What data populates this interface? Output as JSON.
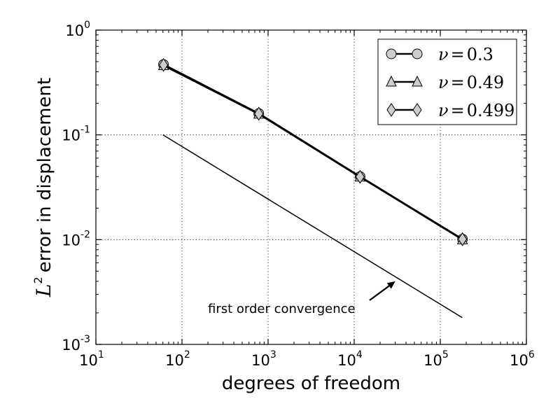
{
  "chart_data": {
    "type": "line",
    "x_scale": "log",
    "y_scale": "log",
    "xlim": [
      10,
      1000000
    ],
    "ylim": [
      0.001,
      1
    ],
    "x_ticks": [
      {
        "base": "10",
        "exp": "1",
        "value": 10
      },
      {
        "base": "10",
        "exp": "2",
        "value": 100
      },
      {
        "base": "10",
        "exp": "3",
        "value": 1000
      },
      {
        "base": "10",
        "exp": "4",
        "value": 10000
      },
      {
        "base": "10",
        "exp": "5",
        "value": 100000
      },
      {
        "base": "10",
        "exp": "6",
        "value": 1000000
      }
    ],
    "y_ticks": [
      {
        "base": "10",
        "exp": "-3",
        "value": 0.001
      },
      {
        "base": "10",
        "exp": "-2",
        "value": 0.01
      },
      {
        "base": "10",
        "exp": "-1",
        "value": 0.1
      },
      {
        "base": "10",
        "exp": "0",
        "value": 1
      }
    ],
    "xlabel": "degrees of freedom",
    "ylabel": {
      "symbol": "L",
      "sup": "2",
      "text": "error in displacement"
    },
    "grid": true,
    "legend_position": "top-right",
    "series": [
      {
        "name": "ν = 0.3",
        "symbol": "ν",
        "value_label": "0.3",
        "marker": "circle",
        "color": "#cccccc",
        "line_color": "#000000",
        "x": [
          61,
          780,
          11700,
          181000
        ],
        "y": [
          0.47,
          0.16,
          0.04,
          0.0101
        ]
      },
      {
        "name": "ν = 0.49",
        "symbol": "ν",
        "value_label": "0.49",
        "marker": "triangle",
        "color": "#cccccc",
        "line_color": "#000000",
        "x": [
          61,
          780,
          11700,
          181000
        ],
        "y": [
          0.46,
          0.158,
          0.0397,
          0.01
        ]
      },
      {
        "name": "ν = 0.499",
        "symbol": "ν",
        "value_label": "0.499",
        "marker": "diamond",
        "color": "#cccccc",
        "line_color": "#000000",
        "x": [
          61,
          780,
          11700,
          181000
        ],
        "y": [
          0.465,
          0.159,
          0.0398,
          0.0101
        ]
      }
    ],
    "reference_line": {
      "label": "first order convergence",
      "x": [
        60,
        180000
      ],
      "y": [
        0.1,
        0.0018
      ]
    },
    "annotation": {
      "text": "first order convergence",
      "arrow_to": {
        "x": 30000,
        "y": 0.004
      }
    }
  }
}
